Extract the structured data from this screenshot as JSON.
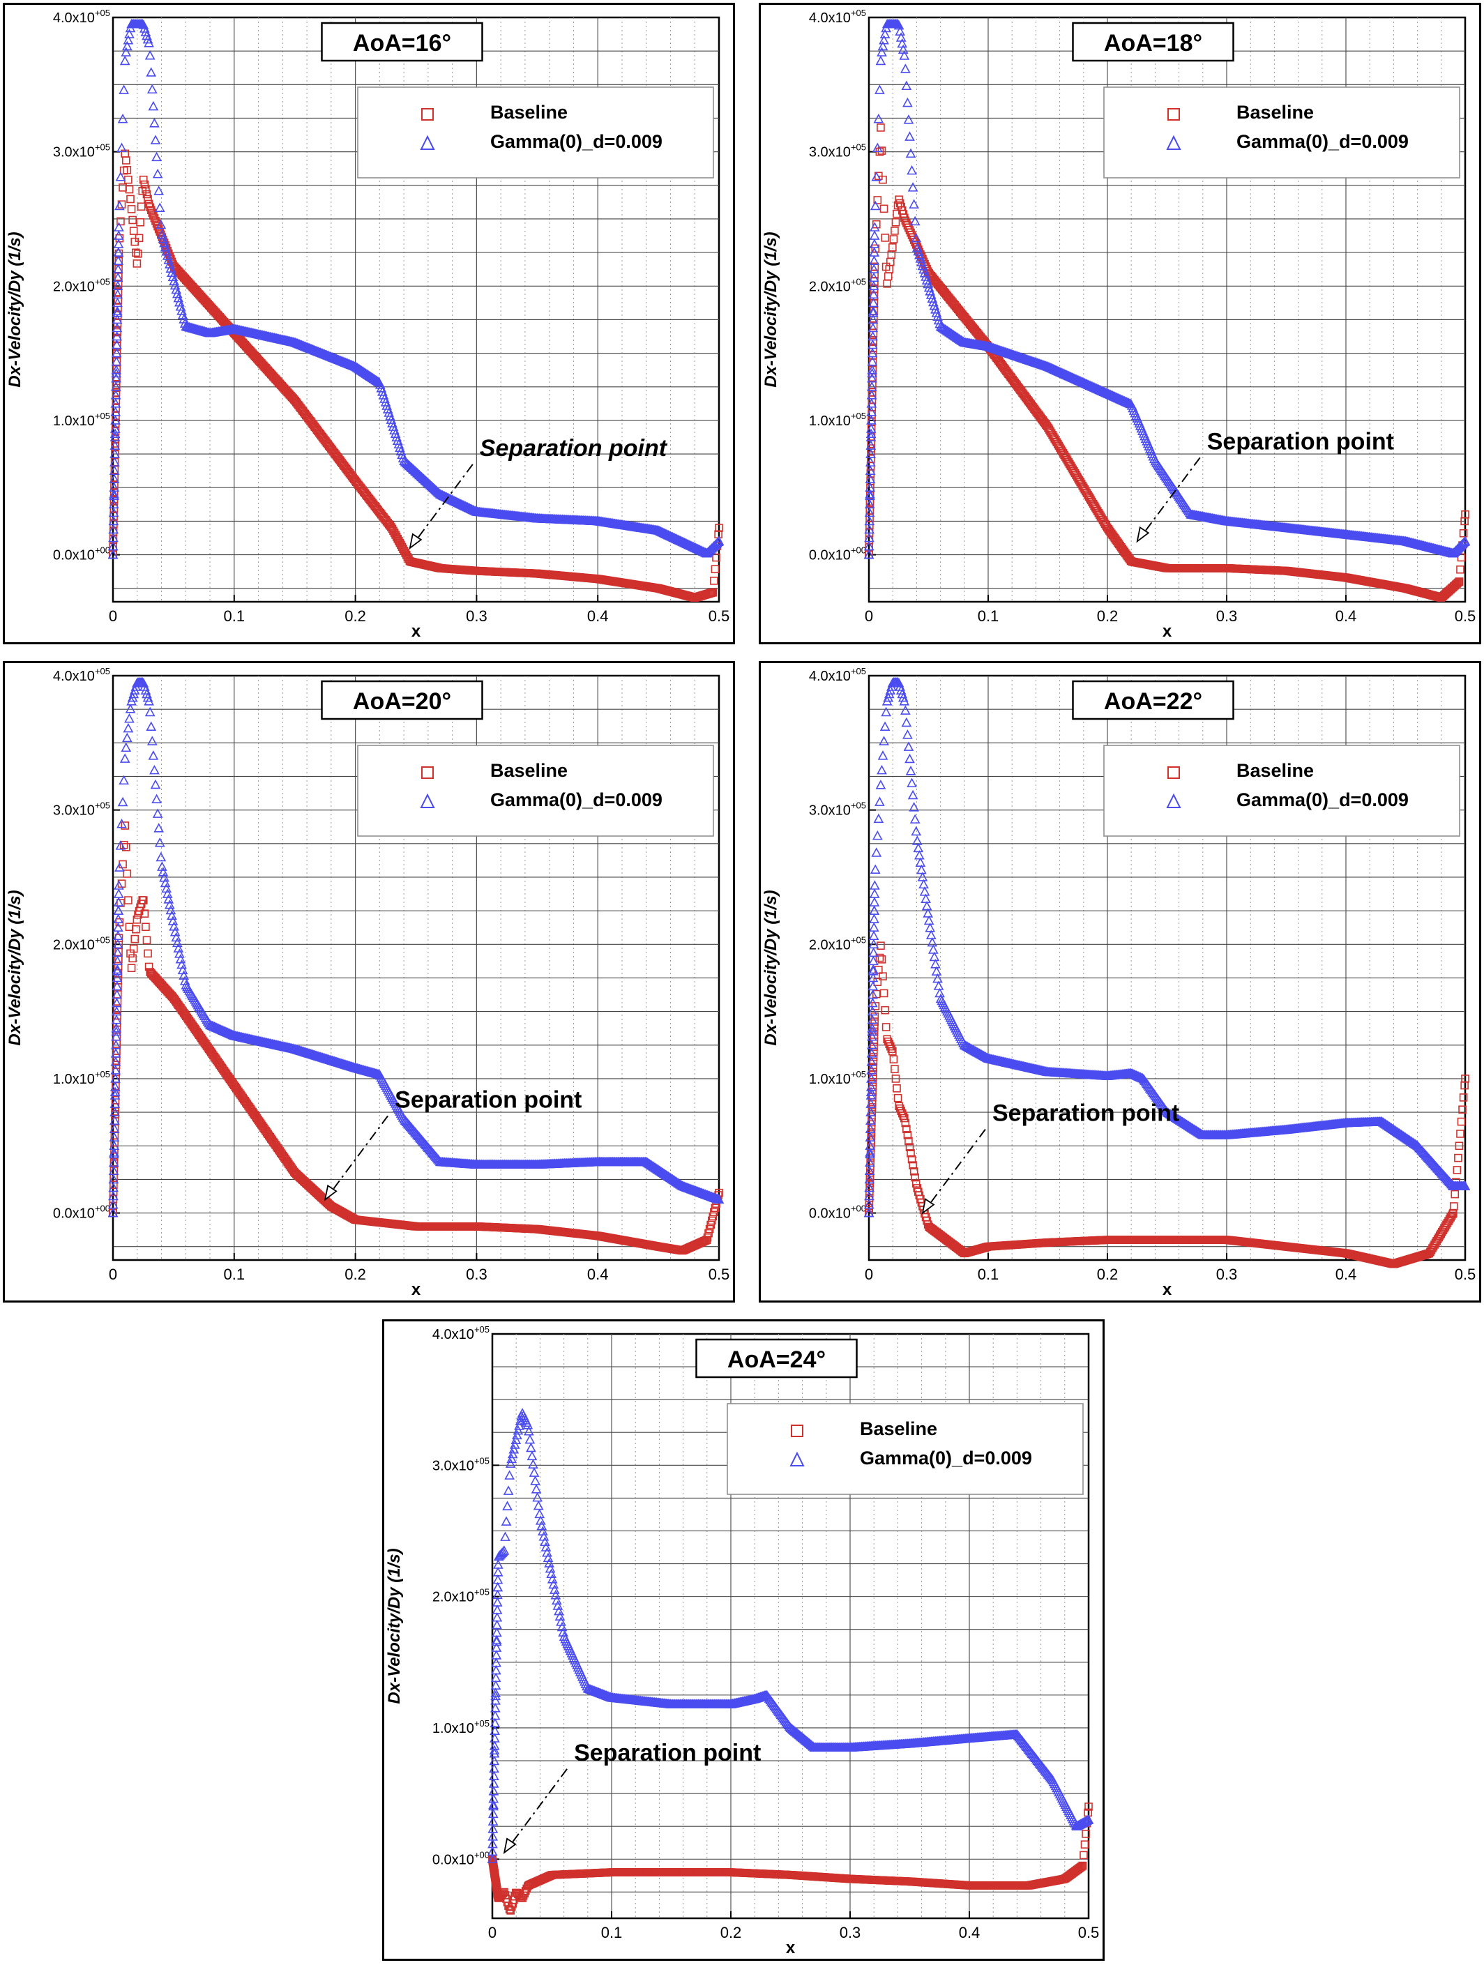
{
  "figure": {
    "background": "#ffffff",
    "baseline_color": "#d0312d",
    "gamma_color": "#4a4cf0",
    "x_label": "x",
    "y_label": "Dx-Velocity/Dy (1/s)",
    "x_ticks": [
      "0",
      "0.1",
      "0.2",
      "0.3",
      "0.4",
      "0.5"
    ],
    "y_ticks": [
      {
        "mant": "0.0x10",
        "exp": "+00"
      },
      {
        "mant": "1.0x10",
        "exp": "+05"
      },
      {
        "mant": "2.0x10",
        "exp": "+05"
      },
      {
        "mant": "3.0x10",
        "exp": "+05"
      },
      {
        "mant": "4.0x10",
        "exp": "+05"
      }
    ],
    "legend": [
      "Baseline",
      "Gamma(0)_d=0.009"
    ],
    "annotation": "Separation point"
  },
  "chart_data": [
    {
      "type": "scatter",
      "title": "AoA=16°",
      "xlabel": "x",
      "ylabel": "Dx-Velocity/Dy (1/s)",
      "xlim": [
        0,
        0.5
      ],
      "ylim": [
        -35000,
        400000
      ],
      "grid": true,
      "legend_position": "top-right",
      "annotation": {
        "text": "Separation point",
        "x": 0.245,
        "y": 5000
      },
      "series": [
        {
          "name": "Baseline",
          "marker": "square",
          "color": "#d0312d",
          "x": [
            0,
            0.005,
            0.01,
            0.015,
            0.02,
            0.025,
            0.03,
            0.05,
            0.1,
            0.15,
            0.2,
            0.23,
            0.245,
            0.27,
            0.3,
            0.35,
            0.4,
            0.45,
            0.48,
            0.495,
            0.5
          ],
          "y": [
            0,
            230000,
            300000,
            260000,
            215000,
            280000,
            260000,
            215000,
            165000,
            115000,
            55000,
            20000,
            -5000,
            -10000,
            -12000,
            -14000,
            -18000,
            -25000,
            -32000,
            -28000,
            20000
          ]
        },
        {
          "name": "Gamma(0)_d=0.009",
          "marker": "triangle",
          "color": "#4a4cf0",
          "x": [
            0,
            0.005,
            0.01,
            0.015,
            0.02,
            0.025,
            0.03,
            0.04,
            0.06,
            0.08,
            0.1,
            0.15,
            0.2,
            0.22,
            0.24,
            0.27,
            0.3,
            0.35,
            0.4,
            0.45,
            0.49,
            0.5
          ],
          "y": [
            0,
            250000,
            370000,
            395000,
            395000,
            395000,
            380000,
            240000,
            170000,
            165000,
            168000,
            158000,
            140000,
            128000,
            70000,
            45000,
            32000,
            27000,
            25000,
            18000,
            1000,
            10000
          ]
        }
      ]
    },
    {
      "type": "scatter",
      "title": "AoA=18°",
      "xlabel": "x",
      "ylabel": "Dx-Velocity/Dy (1/s)",
      "xlim": [
        0,
        0.5
      ],
      "ylim": [
        -35000,
        400000
      ],
      "grid": true,
      "legend_position": "top-right",
      "annotation": {
        "text": "Separation point",
        "x": 0.225,
        "y": 10000
      },
      "series": [
        {
          "name": "Baseline",
          "marker": "square",
          "color": "#d0312d",
          "x": [
            0,
            0.005,
            0.01,
            0.015,
            0.02,
            0.025,
            0.03,
            0.05,
            0.1,
            0.15,
            0.2,
            0.22,
            0.25,
            0.3,
            0.35,
            0.4,
            0.45,
            0.48,
            0.495,
            0.5
          ],
          "y": [
            0,
            220000,
            320000,
            200000,
            230000,
            265000,
            250000,
            210000,
            155000,
            95000,
            20000,
            -5000,
            -10000,
            -10000,
            -12000,
            -17000,
            -25000,
            -32000,
            -20000,
            30000
          ]
        },
        {
          "name": "Gamma(0)_d=0.009",
          "marker": "triangle",
          "color": "#4a4cf0",
          "x": [
            0,
            0.005,
            0.01,
            0.015,
            0.02,
            0.025,
            0.03,
            0.04,
            0.06,
            0.08,
            0.1,
            0.15,
            0.2,
            0.22,
            0.24,
            0.27,
            0.3,
            0.35,
            0.4,
            0.45,
            0.49,
            0.5
          ],
          "y": [
            0,
            250000,
            370000,
            395000,
            395000,
            395000,
            370000,
            230000,
            170000,
            158000,
            155000,
            140000,
            120000,
            112000,
            70000,
            30000,
            25000,
            20000,
            15000,
            10000,
            1000,
            10000
          ]
        }
      ]
    },
    {
      "type": "scatter",
      "title": "AoA=20°",
      "xlabel": "x",
      "ylabel": "Dx-Velocity/Dy (1/s)",
      "xlim": [
        0,
        0.5
      ],
      "ylim": [
        -35000,
        400000
      ],
      "grid": true,
      "legend_position": "top-right",
      "annotation": {
        "text": "Separation point",
        "x": 0.175,
        "y": 10000
      },
      "series": [
        {
          "name": "Baseline",
          "marker": "square",
          "color": "#d0312d",
          "x": [
            0,
            0.005,
            0.01,
            0.015,
            0.02,
            0.025,
            0.03,
            0.05,
            0.1,
            0.15,
            0.18,
            0.2,
            0.25,
            0.3,
            0.35,
            0.4,
            0.45,
            0.47,
            0.49,
            0.5
          ],
          "y": [
            0,
            210000,
            290000,
            180000,
            220000,
            235000,
            180000,
            160000,
            95000,
            30000,
            5000,
            -5000,
            -10000,
            -10000,
            -12000,
            -17000,
            -25000,
            -28000,
            -20000,
            15000
          ]
        },
        {
          "name": "Gamma(0)_d=0.009",
          "marker": "triangle",
          "color": "#4a4cf0",
          "x": [
            0,
            0.005,
            0.01,
            0.015,
            0.02,
            0.025,
            0.03,
            0.04,
            0.06,
            0.08,
            0.1,
            0.15,
            0.2,
            0.22,
            0.24,
            0.27,
            0.3,
            0.35,
            0.4,
            0.44,
            0.47,
            0.5
          ],
          "y": [
            0,
            250000,
            340000,
            380000,
            395000,
            395000,
            380000,
            260000,
            170000,
            140000,
            132000,
            122000,
            108000,
            103000,
            70000,
            38000,
            36000,
            36000,
            38000,
            38000,
            20000,
            10000
          ]
        }
      ]
    },
    {
      "type": "scatter",
      "title": "AoA=22°",
      "xlabel": "x",
      "ylabel": "Dx-Velocity/Dy (1/s)",
      "xlim": [
        0,
        0.5
      ],
      "ylim": [
        -35000,
        400000
      ],
      "grid": true,
      "legend_position": "top-right",
      "annotation": {
        "text": "Separation point",
        "x": 0.045,
        "y": 0
      },
      "series": [
        {
          "name": "Baseline",
          "marker": "square",
          "color": "#d0312d",
          "x": [
            0,
            0.005,
            0.01,
            0.015,
            0.02,
            0.025,
            0.03,
            0.04,
            0.05,
            0.08,
            0.1,
            0.15,
            0.2,
            0.25,
            0.3,
            0.35,
            0.4,
            0.44,
            0.47,
            0.49,
            0.5
          ],
          "y": [
            0,
            150000,
            200000,
            130000,
            120000,
            80000,
            70000,
            20000,
            -10000,
            -30000,
            -25000,
            -22000,
            -20000,
            -20000,
            -20000,
            -25000,
            -30000,
            -38000,
            -30000,
            0,
            100000
          ]
        },
        {
          "name": "Gamma(0)_d=0.009",
          "marker": "triangle",
          "color": "#4a4cf0",
          "x": [
            0,
            0.005,
            0.01,
            0.015,
            0.02,
            0.025,
            0.03,
            0.04,
            0.06,
            0.08,
            0.1,
            0.15,
            0.2,
            0.22,
            0.23,
            0.25,
            0.28,
            0.3,
            0.35,
            0.4,
            0.43,
            0.46,
            0.49,
            0.5
          ],
          "y": [
            0,
            250000,
            320000,
            380000,
            395000,
            395000,
            380000,
            280000,
            160000,
            125000,
            115000,
            105000,
            102000,
            104000,
            100000,
            75000,
            58000,
            58000,
            62000,
            67000,
            68000,
            50000,
            20000,
            20000
          ]
        }
      ]
    },
    {
      "type": "scatter",
      "title": "AoA=24°",
      "xlabel": "x",
      "ylabel": "Dx-Velocity/Dy (1/s)",
      "xlim": [
        0,
        0.5
      ],
      "ylim": [
        -45000,
        400000
      ],
      "grid": true,
      "legend_position": "top-right",
      "annotation": {
        "text": "Separation point",
        "x": 0.01,
        "y": 5000
      },
      "series": [
        {
          "name": "Baseline",
          "marker": "square",
          "color": "#d0312d",
          "x": [
            0,
            0.005,
            0.01,
            0.015,
            0.02,
            0.025,
            0.03,
            0.05,
            0.1,
            0.15,
            0.2,
            0.25,
            0.3,
            0.35,
            0.4,
            0.45,
            0.48,
            0.495,
            0.5
          ],
          "y": [
            0,
            -30000,
            -25000,
            -40000,
            -25000,
            -30000,
            -20000,
            -12000,
            -10000,
            -10000,
            -10000,
            -12000,
            -15000,
            -17000,
            -20000,
            -20000,
            -15000,
            -5000,
            40000
          ]
        },
        {
          "name": "Gamma(0)_d=0.009",
          "marker": "triangle",
          "color": "#4a4cf0",
          "x": [
            0,
            0.005,
            0.01,
            0.015,
            0.02,
            0.025,
            0.03,
            0.04,
            0.06,
            0.08,
            0.1,
            0.15,
            0.2,
            0.22,
            0.23,
            0.25,
            0.27,
            0.3,
            0.35,
            0.4,
            0.44,
            0.47,
            0.49,
            0.5
          ],
          "y": [
            0,
            230000,
            235000,
            300000,
            320000,
            340000,
            330000,
            260000,
            170000,
            130000,
            123000,
            118000,
            118000,
            122000,
            125000,
            100000,
            85000,
            85000,
            88000,
            92000,
            95000,
            60000,
            25000,
            30000
          ]
        }
      ]
    }
  ]
}
